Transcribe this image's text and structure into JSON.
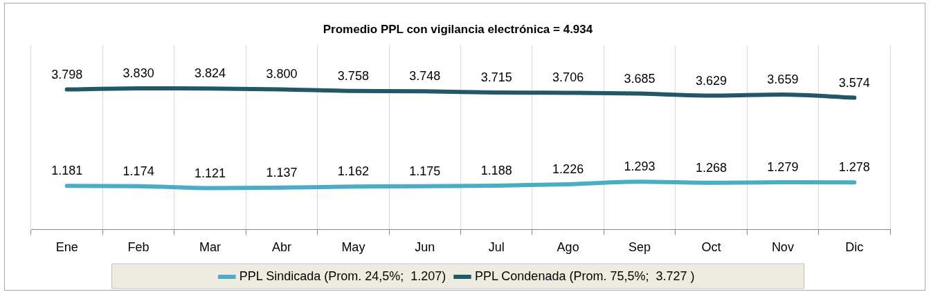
{
  "chart_data": {
    "type": "line",
    "title": "Promedio PPL con vigilancia electrónica = 4.934",
    "categories": [
      "Ene",
      "Feb",
      "Mar",
      "Abr",
      "May",
      "Jun",
      "Jul",
      "Ago",
      "Sep",
      "Oct",
      "Nov",
      "Dic"
    ],
    "series": [
      {
        "name": "PPL Sindicada (Prom. 24,5%;  1.207)",
        "color": "#4bacc6",
        "values": [
          1181,
          1174,
          1121,
          1137,
          1162,
          1175,
          1188,
          1226,
          1293,
          1268,
          1279,
          1278
        ],
        "value_labels": [
          "1.181",
          "1.174",
          "1.121",
          "1.137",
          "1.162",
          "1.175",
          "1.188",
          "1.226",
          "1.293",
          "1.268",
          "1.279",
          "1.278"
        ]
      },
      {
        "name": "PPL Condenada (Prom. 75,5%;  3.727 )",
        "color": "#215868",
        "values": [
          3798,
          3830,
          3824,
          3800,
          3758,
          3748,
          3715,
          3706,
          3685,
          3629,
          3659,
          3574
        ],
        "value_labels": [
          "3.798",
          "3.830",
          "3.824",
          "3.800",
          "3.758",
          "3.748",
          "3.715",
          "3.706",
          "3.685",
          "3.629",
          "3.659",
          "3.574"
        ]
      }
    ],
    "ylim": [
      0,
      5000
    ],
    "tick_labels": "x",
    "grid": "x",
    "legend": "bottom",
    "marker": "none",
    "line_style": "solid"
  }
}
